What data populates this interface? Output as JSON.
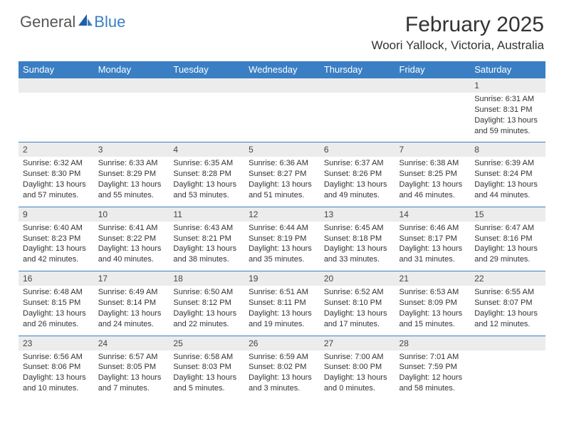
{
  "brand": {
    "part1": "General",
    "part2": "Blue"
  },
  "title": "February 2025",
  "location": "Woori Yallock, Victoria, Australia",
  "colors": {
    "header_bg": "#3a7fc4",
    "header_text": "#ffffff",
    "daynum_bg": "#ececec",
    "text": "#333333",
    "page_bg": "#ffffff"
  },
  "day_names": [
    "Sunday",
    "Monday",
    "Tuesday",
    "Wednesday",
    "Thursday",
    "Friday",
    "Saturday"
  ],
  "weeks": [
    {
      "days": [
        {
          "empty": true
        },
        {
          "empty": true
        },
        {
          "empty": true
        },
        {
          "empty": true
        },
        {
          "empty": true
        },
        {
          "empty": true
        },
        {
          "num": "1",
          "sunrise": "Sunrise: 6:31 AM",
          "sunset": "Sunset: 8:31 PM",
          "day1": "Daylight: 13 hours",
          "day2": "and 59 minutes."
        }
      ]
    },
    {
      "days": [
        {
          "num": "2",
          "sunrise": "Sunrise: 6:32 AM",
          "sunset": "Sunset: 8:30 PM",
          "day1": "Daylight: 13 hours",
          "day2": "and 57 minutes."
        },
        {
          "num": "3",
          "sunrise": "Sunrise: 6:33 AM",
          "sunset": "Sunset: 8:29 PM",
          "day1": "Daylight: 13 hours",
          "day2": "and 55 minutes."
        },
        {
          "num": "4",
          "sunrise": "Sunrise: 6:35 AM",
          "sunset": "Sunset: 8:28 PM",
          "day1": "Daylight: 13 hours",
          "day2": "and 53 minutes."
        },
        {
          "num": "5",
          "sunrise": "Sunrise: 6:36 AM",
          "sunset": "Sunset: 8:27 PM",
          "day1": "Daylight: 13 hours",
          "day2": "and 51 minutes."
        },
        {
          "num": "6",
          "sunrise": "Sunrise: 6:37 AM",
          "sunset": "Sunset: 8:26 PM",
          "day1": "Daylight: 13 hours",
          "day2": "and 49 minutes."
        },
        {
          "num": "7",
          "sunrise": "Sunrise: 6:38 AM",
          "sunset": "Sunset: 8:25 PM",
          "day1": "Daylight: 13 hours",
          "day2": "and 46 minutes."
        },
        {
          "num": "8",
          "sunrise": "Sunrise: 6:39 AM",
          "sunset": "Sunset: 8:24 PM",
          "day1": "Daylight: 13 hours",
          "day2": "and 44 minutes."
        }
      ]
    },
    {
      "days": [
        {
          "num": "9",
          "sunrise": "Sunrise: 6:40 AM",
          "sunset": "Sunset: 8:23 PM",
          "day1": "Daylight: 13 hours",
          "day2": "and 42 minutes."
        },
        {
          "num": "10",
          "sunrise": "Sunrise: 6:41 AM",
          "sunset": "Sunset: 8:22 PM",
          "day1": "Daylight: 13 hours",
          "day2": "and 40 minutes."
        },
        {
          "num": "11",
          "sunrise": "Sunrise: 6:43 AM",
          "sunset": "Sunset: 8:21 PM",
          "day1": "Daylight: 13 hours",
          "day2": "and 38 minutes."
        },
        {
          "num": "12",
          "sunrise": "Sunrise: 6:44 AM",
          "sunset": "Sunset: 8:19 PM",
          "day1": "Daylight: 13 hours",
          "day2": "and 35 minutes."
        },
        {
          "num": "13",
          "sunrise": "Sunrise: 6:45 AM",
          "sunset": "Sunset: 8:18 PM",
          "day1": "Daylight: 13 hours",
          "day2": "and 33 minutes."
        },
        {
          "num": "14",
          "sunrise": "Sunrise: 6:46 AM",
          "sunset": "Sunset: 8:17 PM",
          "day1": "Daylight: 13 hours",
          "day2": "and 31 minutes."
        },
        {
          "num": "15",
          "sunrise": "Sunrise: 6:47 AM",
          "sunset": "Sunset: 8:16 PM",
          "day1": "Daylight: 13 hours",
          "day2": "and 29 minutes."
        }
      ]
    },
    {
      "days": [
        {
          "num": "16",
          "sunrise": "Sunrise: 6:48 AM",
          "sunset": "Sunset: 8:15 PM",
          "day1": "Daylight: 13 hours",
          "day2": "and 26 minutes."
        },
        {
          "num": "17",
          "sunrise": "Sunrise: 6:49 AM",
          "sunset": "Sunset: 8:14 PM",
          "day1": "Daylight: 13 hours",
          "day2": "and 24 minutes."
        },
        {
          "num": "18",
          "sunrise": "Sunrise: 6:50 AM",
          "sunset": "Sunset: 8:12 PM",
          "day1": "Daylight: 13 hours",
          "day2": "and 22 minutes."
        },
        {
          "num": "19",
          "sunrise": "Sunrise: 6:51 AM",
          "sunset": "Sunset: 8:11 PM",
          "day1": "Daylight: 13 hours",
          "day2": "and 19 minutes."
        },
        {
          "num": "20",
          "sunrise": "Sunrise: 6:52 AM",
          "sunset": "Sunset: 8:10 PM",
          "day1": "Daylight: 13 hours",
          "day2": "and 17 minutes."
        },
        {
          "num": "21",
          "sunrise": "Sunrise: 6:53 AM",
          "sunset": "Sunset: 8:09 PM",
          "day1": "Daylight: 13 hours",
          "day2": "and 15 minutes."
        },
        {
          "num": "22",
          "sunrise": "Sunrise: 6:55 AM",
          "sunset": "Sunset: 8:07 PM",
          "day1": "Daylight: 13 hours",
          "day2": "and 12 minutes."
        }
      ]
    },
    {
      "days": [
        {
          "num": "23",
          "sunrise": "Sunrise: 6:56 AM",
          "sunset": "Sunset: 8:06 PM",
          "day1": "Daylight: 13 hours",
          "day2": "and 10 minutes."
        },
        {
          "num": "24",
          "sunrise": "Sunrise: 6:57 AM",
          "sunset": "Sunset: 8:05 PM",
          "day1": "Daylight: 13 hours",
          "day2": "and 7 minutes."
        },
        {
          "num": "25",
          "sunrise": "Sunrise: 6:58 AM",
          "sunset": "Sunset: 8:03 PM",
          "day1": "Daylight: 13 hours",
          "day2": "and 5 minutes."
        },
        {
          "num": "26",
          "sunrise": "Sunrise: 6:59 AM",
          "sunset": "Sunset: 8:02 PM",
          "day1": "Daylight: 13 hours",
          "day2": "and 3 minutes."
        },
        {
          "num": "27",
          "sunrise": "Sunrise: 7:00 AM",
          "sunset": "Sunset: 8:00 PM",
          "day1": "Daylight: 13 hours",
          "day2": "and 0 minutes."
        },
        {
          "num": "28",
          "sunrise": "Sunrise: 7:01 AM",
          "sunset": "Sunset: 7:59 PM",
          "day1": "Daylight: 12 hours",
          "day2": "and 58 minutes."
        },
        {
          "empty": true
        }
      ]
    }
  ]
}
